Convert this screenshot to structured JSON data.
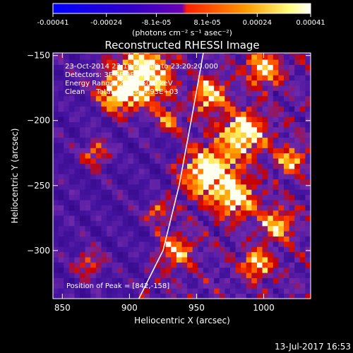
{
  "chart_data": {
    "type": "heatmap",
    "title": "Reconstructed RHESSI Image",
    "xlabel": "Heliocentric X (arcsec)",
    "ylabel": "Heliocentric Y (arcsec)",
    "xlim": [
      843,
      1035
    ],
    "ylim": [
      -337,
      -148
    ],
    "x_ticks": [
      850,
      900,
      950,
      1000
    ],
    "y_ticks": [
      -150,
      -200,
      -250,
      -300
    ],
    "colorbar": {
      "range": [
        -0.00041,
        0.00041
      ],
      "tick_values": [
        -0.00041,
        -0.00024,
        -8.1e-05,
        8.1e-05,
        0.00024,
        0.00041
      ],
      "tick_labels": [
        "-0.00041",
        "-0.00024",
        "-8.1e-05",
        "8.1e-05",
        "0.00024",
        "0.00041"
      ],
      "label": "(photons cm⁻² s⁻¹ asec⁻²)",
      "colors": [
        "#0000ff",
        "#3000c8",
        "#6a00b4",
        "#ff2000",
        "#ff9a00",
        "#ffff80",
        "#ffffff"
      ]
    },
    "annotations": [
      "23-Oct-2014 23:10:20.000 to 23:20:20.000",
      "Detectors: 3F 6F 9F, Att 0",
      "Energy Range: 25.0 - 50.0 keV",
      "Clean     Total counts: 4.93E+03"
    ],
    "peak_label": "Position of Peak = [842,-158]",
    "limb_curve": [
      [
        907,
        -337
      ],
      [
        925,
        -300
      ],
      [
        937,
        -250
      ],
      [
        946,
        -200
      ],
      [
        953,
        -160
      ],
      [
        955,
        -148
      ]
    ],
    "pixel_size_arcsec": 4
  },
  "footer": {
    "timestamp": "13-Jul-2017 16:53"
  }
}
